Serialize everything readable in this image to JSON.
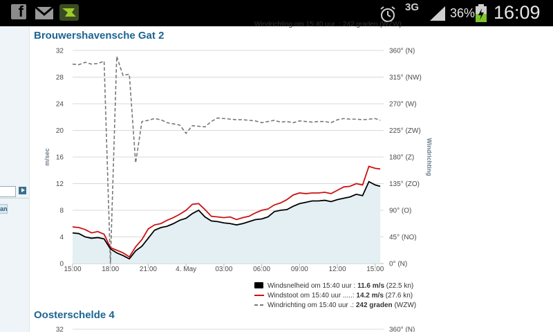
{
  "statusbar": {
    "network": "3G",
    "battery_pct": "36%",
    "time": "16:09",
    "icons": [
      "facebook-icon",
      "gmail-icon",
      "app-icon",
      "alarm-icon",
      "signal-icon",
      "battery-icon"
    ]
  },
  "sidebar": {
    "link_text": "an"
  },
  "station1": {
    "title": "Brouwershavensche Gat 2",
    "top_legend_cut": "Windrichting om 15:40 uur .:  242 graden (WZW)"
  },
  "station2": {
    "title": "Oosterschelde 4",
    "y_first_left": "32",
    "y_first_right": "360° (N)"
  },
  "chart_data": {
    "type": "line",
    "ylabel_left": "m/sec",
    "ylabel_right": "Windrichting",
    "ylim": [
      0,
      32
    ],
    "y_ticks": [
      "0",
      "4",
      "8",
      "12",
      "16",
      "20",
      "24",
      "28",
      "32"
    ],
    "y2_ticks": [
      "0° (N)",
      "45° (NO)",
      "90° (O)",
      "135° (ZO)",
      "180° (Z)",
      "225° (ZW)",
      "270° (W)",
      "315° (NW)",
      "360° (N)"
    ],
    "y2lim": [
      0,
      360
    ],
    "x_ticks": [
      "15:00",
      "18:00",
      "21:00",
      "4. May",
      "03:00",
      "06:00",
      "09:00",
      "12:00",
      "15:00"
    ],
    "xlim_hours": [
      0,
      24.67
    ],
    "x": [
      0,
      0.5,
      1,
      1.5,
      2,
      2.5,
      3,
      3.5,
      4,
      4.5,
      5,
      5.5,
      6,
      6.5,
      7,
      7.5,
      8,
      8.5,
      9,
      9.5,
      10,
      10.5,
      11,
      11.5,
      12,
      12.5,
      13,
      13.5,
      14,
      14.5,
      15,
      15.5,
      16,
      16.5,
      17,
      17.5,
      18,
      18.5,
      19,
      19.5,
      20,
      20.5,
      21,
      21.5,
      22,
      22.5,
      23,
      23.5,
      24,
      24.4
    ],
    "series": [
      {
        "name": "Windsnelheid om 15:40 uur :",
        "color": "#000000",
        "legend_value": "11.6 m/s",
        "legend_extra": "(22.5 kn)",
        "values": [
          4.6,
          4.5,
          4.0,
          3.8,
          3.9,
          3.7,
          2.2,
          1.6,
          1.2,
          0.7,
          1.9,
          2.6,
          3.8,
          5.0,
          5.4,
          5.6,
          6.0,
          6.5,
          6.8,
          7.5,
          8.0,
          7.0,
          6.4,
          6.3,
          6.1,
          6.0,
          5.8,
          6.0,
          6.3,
          6.6,
          6.7,
          7.0,
          7.8,
          8.0,
          8.1,
          8.6,
          9.0,
          9.2,
          9.4,
          9.4,
          9.5,
          9.3,
          9.6,
          9.8,
          10.0,
          10.4,
          10.2,
          12.3,
          11.8,
          11.6
        ]
      },
      {
        "name": "Windstoot om 15:40 uur .....:",
        "color": "#cc1111",
        "legend_value": "14.2 m/s",
        "legend_extra": "(27.6 kn)",
        "values": [
          5.5,
          5.4,
          5.1,
          4.6,
          4.8,
          4.4,
          2.4,
          2.0,
          1.6,
          1.0,
          2.5,
          3.6,
          5.2,
          5.8,
          6.0,
          6.5,
          6.9,
          7.4,
          8.0,
          8.9,
          9.0,
          8.1,
          7.1,
          7.0,
          6.9,
          7.0,
          6.6,
          6.9,
          7.1,
          7.6,
          8.0,
          8.2,
          8.8,
          9.1,
          9.6,
          10.3,
          10.6,
          10.5,
          10.6,
          10.6,
          10.7,
          10.5,
          11.0,
          11.5,
          11.6,
          12.0,
          11.8,
          14.6,
          14.3,
          14.2
        ]
      },
      {
        "name": "Windrichting om 15:40 uur .:",
        "color": "#777777",
        "legend_value": "242 graden",
        "legend_extra": "(WZW)",
        "values": [
          337,
          336,
          340,
          337,
          338,
          342,
          0,
          350,
          318,
          320,
          170,
          240,
          242,
          245,
          243,
          238,
          236,
          234,
          220,
          233,
          232,
          231,
          240,
          246,
          245,
          244,
          243,
          243,
          242,
          241,
          238,
          240,
          242,
          239,
          240,
          238,
          241,
          240,
          239,
          240,
          240,
          238,
          243,
          245,
          244,
          244,
          243,
          244,
          245,
          242
        ]
      }
    ],
    "grid": true,
    "legend_position": "bottom-right"
  }
}
